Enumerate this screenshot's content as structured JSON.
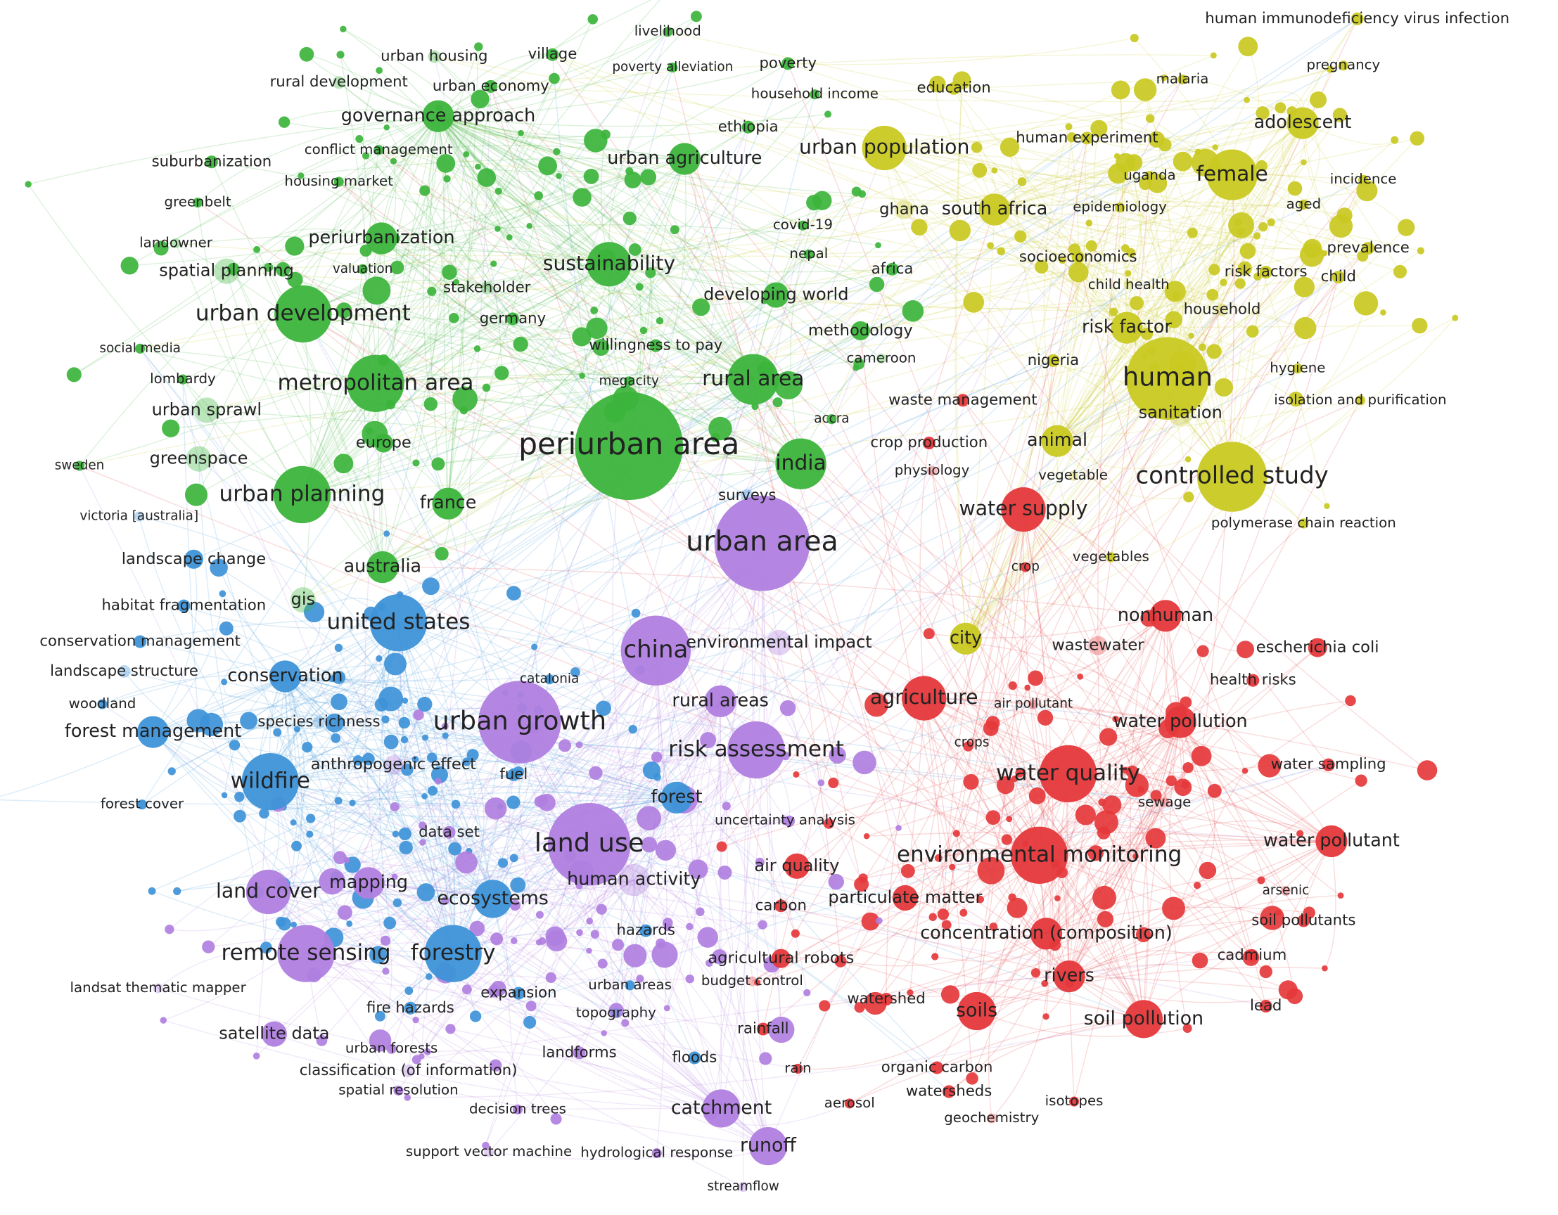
{
  "clusters": [
    {
      "color": "#3cb43c",
      "labels": [
        "livelihood",
        "village",
        "urban housing",
        "poverty alleviation",
        "poverty",
        "rural development",
        "urban economy",
        "household income",
        "governance approach",
        "ethiopia",
        "suburbanization",
        "conflict management",
        "urban agriculture",
        "housing market",
        "greenbelt",
        "periurbanization",
        "covid-19",
        "nepal",
        "spatial planning",
        "valuation",
        "sustainability",
        "africa",
        "developing world",
        "germany",
        "urban development",
        "methodology",
        "social media",
        "willingness to pay",
        "cameroon",
        "lombardy",
        "metropolitan area",
        "megacity",
        "rural area",
        "urban sprawl",
        "europe",
        "accra",
        "periurban area",
        "india",
        "sweden",
        "greenspace",
        "urban planning",
        "france",
        "landowner",
        "australia",
        "gis",
        "stakeholder"
      ]
    },
    {
      "color": "#c9c922",
      "labels": [
        "human immunodeficiency virus infection",
        "education",
        "malaria",
        "pregnancy",
        "adolescent",
        "human experiment",
        "urban population",
        "uganda",
        "female",
        "incidence",
        "epidemiology",
        "aged",
        "south africa",
        "ghana",
        "prevalence",
        "socioeconomics",
        "risk factors",
        "child",
        "child health",
        "household",
        "risk factor",
        "nigeria",
        "human",
        "hygiene",
        "isolation and purification",
        "sanitation",
        "animal",
        "controlled study",
        "polymerase chain reaction",
        "vegetables",
        "city",
        "vegetable"
      ]
    },
    {
      "color": "#e5383b",
      "labels": [
        "waste management",
        "crop production",
        "physiology",
        "water supply",
        "crop",
        "nonhuman",
        "escherichia coli",
        "wastewater",
        "agriculture",
        "air pollutant",
        "health risks",
        "water pollution",
        "crops",
        "water sampling",
        "water quality",
        "sewage",
        "water pollutant",
        "environmental monitoring",
        "air quality",
        "arsenic",
        "carbon",
        "particulate matter",
        "soil pollutants",
        "concentration (composition)",
        "cadmium",
        "agricultural robots",
        "watershed",
        "rivers",
        "soils",
        "soil pollution",
        "lead",
        "rainfall",
        "rain",
        "organic carbon",
        "aerosol",
        "watersheds",
        "isotopes",
        "geochemistry",
        "budget control"
      ]
    },
    {
      "color": "#3e93d8",
      "labels": [
        "landscape change",
        "habitat fragmentation",
        "conservation management",
        "united states",
        "landscape structure",
        "conservation",
        "woodland",
        "species richness",
        "forest management",
        "wildfire",
        "forest cover",
        "catalonia",
        "fuel",
        "forest",
        "ecosystems",
        "forestry",
        "hazards",
        "fire hazards",
        "expansion",
        "urban areas",
        "topography",
        "floods",
        "victoria [australia]",
        "surveys"
      ]
    },
    {
      "color": "#b07fe0",
      "labels": [
        "urban area",
        "china",
        "rural areas",
        "urban growth",
        "risk assessment",
        "land use",
        "data set",
        "human activity",
        "mapping",
        "land cover",
        "remote sensing",
        "satellite data",
        "urban forests",
        "landforms",
        "spatial resolution",
        "decision trees",
        "catchment",
        "support vector machine",
        "hydrological response",
        "runoff",
        "landsat thematic mapper",
        "classification (of information)",
        "environmental impact",
        "anthropogenic effect",
        "streamflow",
        "uncertainty analysis"
      ]
    }
  ]
}
